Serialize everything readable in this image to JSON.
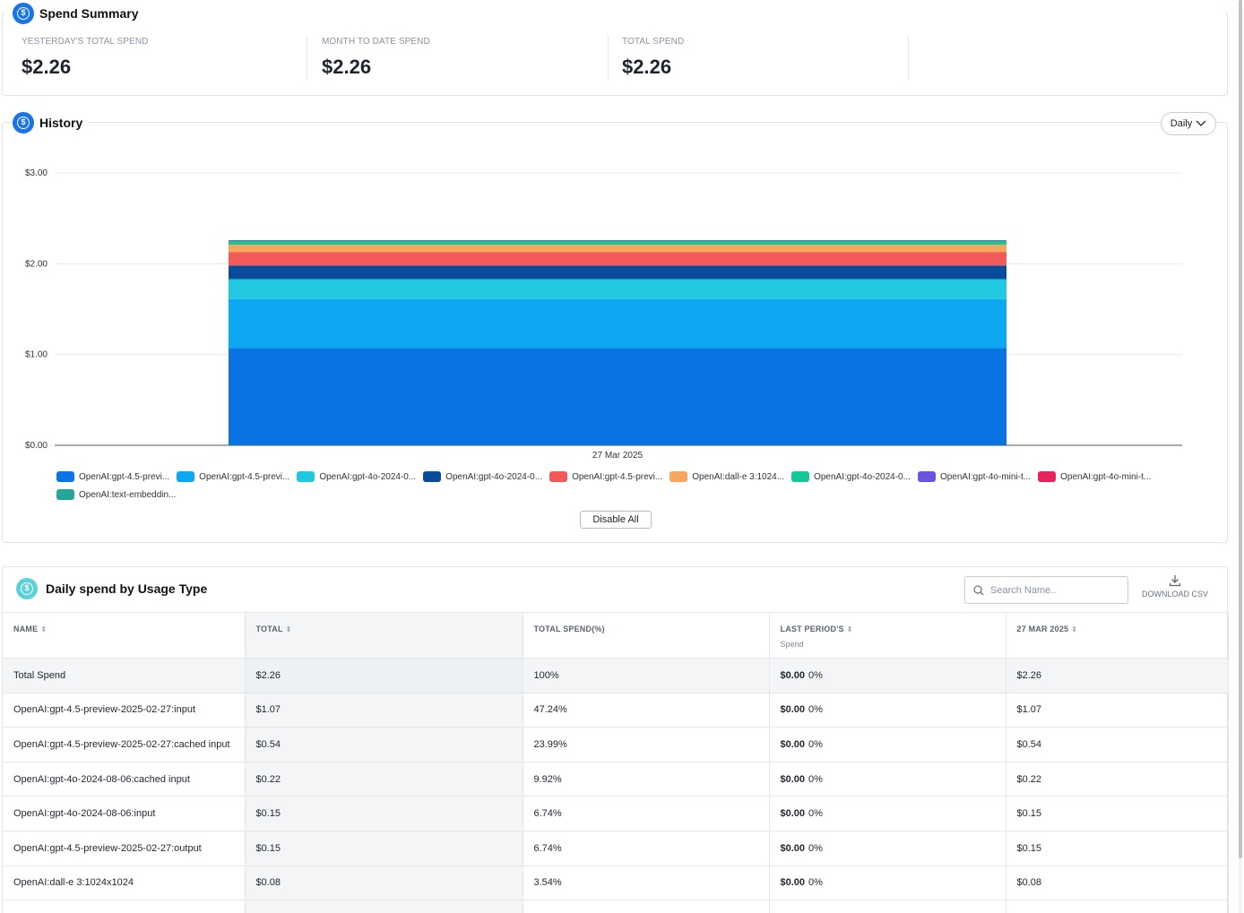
{
  "summary": {
    "title": "Spend Summary",
    "stats": [
      {
        "label": "YESTERDAY'S TOTAL SPEND",
        "value": "$2.26"
      },
      {
        "label": "MONTH TO DATE SPEND",
        "value": "$2.26"
      },
      {
        "label": "TOTAL SPEND",
        "value": "$2.26"
      }
    ]
  },
  "history": {
    "title": "History",
    "period_button": "Daily",
    "disable_all": "Disable All"
  },
  "chart_data": {
    "type": "bar",
    "stacked": true,
    "categories": [
      "27 Mar 2025"
    ],
    "ylim": [
      0,
      3
    ],
    "yticks": [
      "$0.00",
      "$1.00",
      "$2.00",
      "$3.00"
    ],
    "grid": true,
    "legend_position": "bottom",
    "series": [
      {
        "name": "OpenAI:gpt-4.5-previ...",
        "values": [
          1.07
        ],
        "color": "#0b74e5"
      },
      {
        "name": "OpenAI:gpt-4.5-previ...",
        "values": [
          0.54
        ],
        "color": "#0ea8f2"
      },
      {
        "name": "OpenAI:gpt-4o-2024-0...",
        "values": [
          0.22
        ],
        "color": "#22c8e0"
      },
      {
        "name": "OpenAI:gpt-4o-2024-0...",
        "values": [
          0.15
        ],
        "color": "#0b4b9c"
      },
      {
        "name": "OpenAI:gpt-4.5-previ...",
        "values": [
          0.15
        ],
        "color": "#f25a5a"
      },
      {
        "name": "OpenAI:dall-e 3:1024...",
        "values": [
          0.08
        ],
        "color": "#f8a65c"
      },
      {
        "name": "OpenAI:gpt-4o-2024-0...",
        "values": [
          0.04
        ],
        "color": "#16c79a"
      },
      {
        "name": "OpenAI:gpt-4o-mini-t...",
        "values": [
          0.005
        ],
        "color": "#6a55e0"
      },
      {
        "name": "OpenAI:gpt-4o-mini-t...",
        "values": [
          0.003
        ],
        "color": "#e8245f"
      },
      {
        "name": "OpenAI:text-embeddin...",
        "values": [
          0.002
        ],
        "color": "#26a69a"
      }
    ]
  },
  "daily": {
    "title": "Daily spend by Usage Type",
    "search_placeholder": "Search Name..",
    "download_label": "DOWNLOAD CSV",
    "headers": {
      "name": "NAME",
      "total": "TOTAL",
      "pct": "TOTAL SPEND(%)",
      "last": "LAST PERIOD'S",
      "last_sub": "Spend",
      "date": "27 MAR 2025"
    },
    "rows": [
      {
        "name": "Total Spend",
        "total": "$2.26",
        "pct": "100%",
        "last": "$0.00",
        "last_pct": "0%",
        "date": "$2.26"
      },
      {
        "name": "OpenAI:gpt-4.5-preview-2025-02-27:input",
        "total": "$1.07",
        "pct": "47.24%",
        "last": "$0.00",
        "last_pct": "0%",
        "date": "$1.07"
      },
      {
        "name": "OpenAI:gpt-4.5-preview-2025-02-27:cached input",
        "total": "$0.54",
        "pct": "23.99%",
        "last": "$0.00",
        "last_pct": "0%",
        "date": "$0.54"
      },
      {
        "name": "OpenAI:gpt-4o-2024-08-06:cached input",
        "total": "$0.22",
        "pct": "9.92%",
        "last": "$0.00",
        "last_pct": "0%",
        "date": "$0.22"
      },
      {
        "name": "OpenAI:gpt-4o-2024-08-06:input",
        "total": "$0.15",
        "pct": "6.74%",
        "last": "$0.00",
        "last_pct": "0%",
        "date": "$0.15"
      },
      {
        "name": "OpenAI:gpt-4.5-preview-2025-02-27:output",
        "total": "$0.15",
        "pct": "6.74%",
        "last": "$0.00",
        "last_pct": "0%",
        "date": "$0.15"
      },
      {
        "name": "OpenAI:dall-e 3:1024x1024",
        "total": "$0.08",
        "pct": "3.54%",
        "last": "$0.00",
        "last_pct": "0%",
        "date": "$0.08"
      },
      {
        "name": "",
        "total": "",
        "pct": "",
        "last": "",
        "last_pct": "",
        "date": ""
      }
    ]
  }
}
